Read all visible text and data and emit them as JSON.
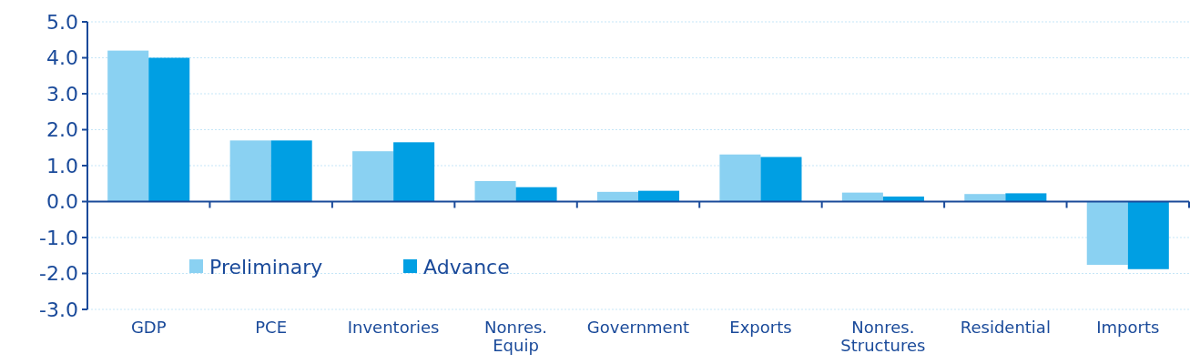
{
  "chart_data": {
    "type": "bar",
    "categories": [
      "GDP",
      "PCE",
      "Inventories",
      "Nonres.\nEquip",
      "Government",
      "Exports",
      "Nonres.\nStructures",
      "Residential",
      "Imports"
    ],
    "series": [
      {
        "name": "Preliminary",
        "color": "#8ad1f2",
        "values": [
          4.2,
          1.7,
          1.4,
          0.57,
          0.27,
          1.31,
          0.25,
          0.21,
          -1.76
        ]
      },
      {
        "name": "Advance",
        "color": "#009fe3",
        "values": [
          4.0,
          1.7,
          1.65,
          0.4,
          0.3,
          1.24,
          0.14,
          0.23,
          -1.88
        ]
      }
    ],
    "ylim": [
      -3,
      5
    ],
    "yticks": [
      {
        "value": -3,
        "label": "-3.0"
      },
      {
        "value": -2,
        "label": "-2.0"
      },
      {
        "value": -1,
        "label": "-1.0"
      },
      {
        "value": 0,
        "label": "0.0"
      },
      {
        "value": 1,
        "label": "1.0"
      },
      {
        "value": 2,
        "label": "2.0"
      },
      {
        "value": 3,
        "label": "3.0"
      },
      {
        "value": 4,
        "label": "4.0"
      },
      {
        "value": 5,
        "label": "5.0"
      }
    ],
    "grid": "y",
    "legend": "left",
    "ref_lines": [
      {
        "axis": "y",
        "value": 0,
        "color": "#1a4a9a"
      }
    ]
  }
}
